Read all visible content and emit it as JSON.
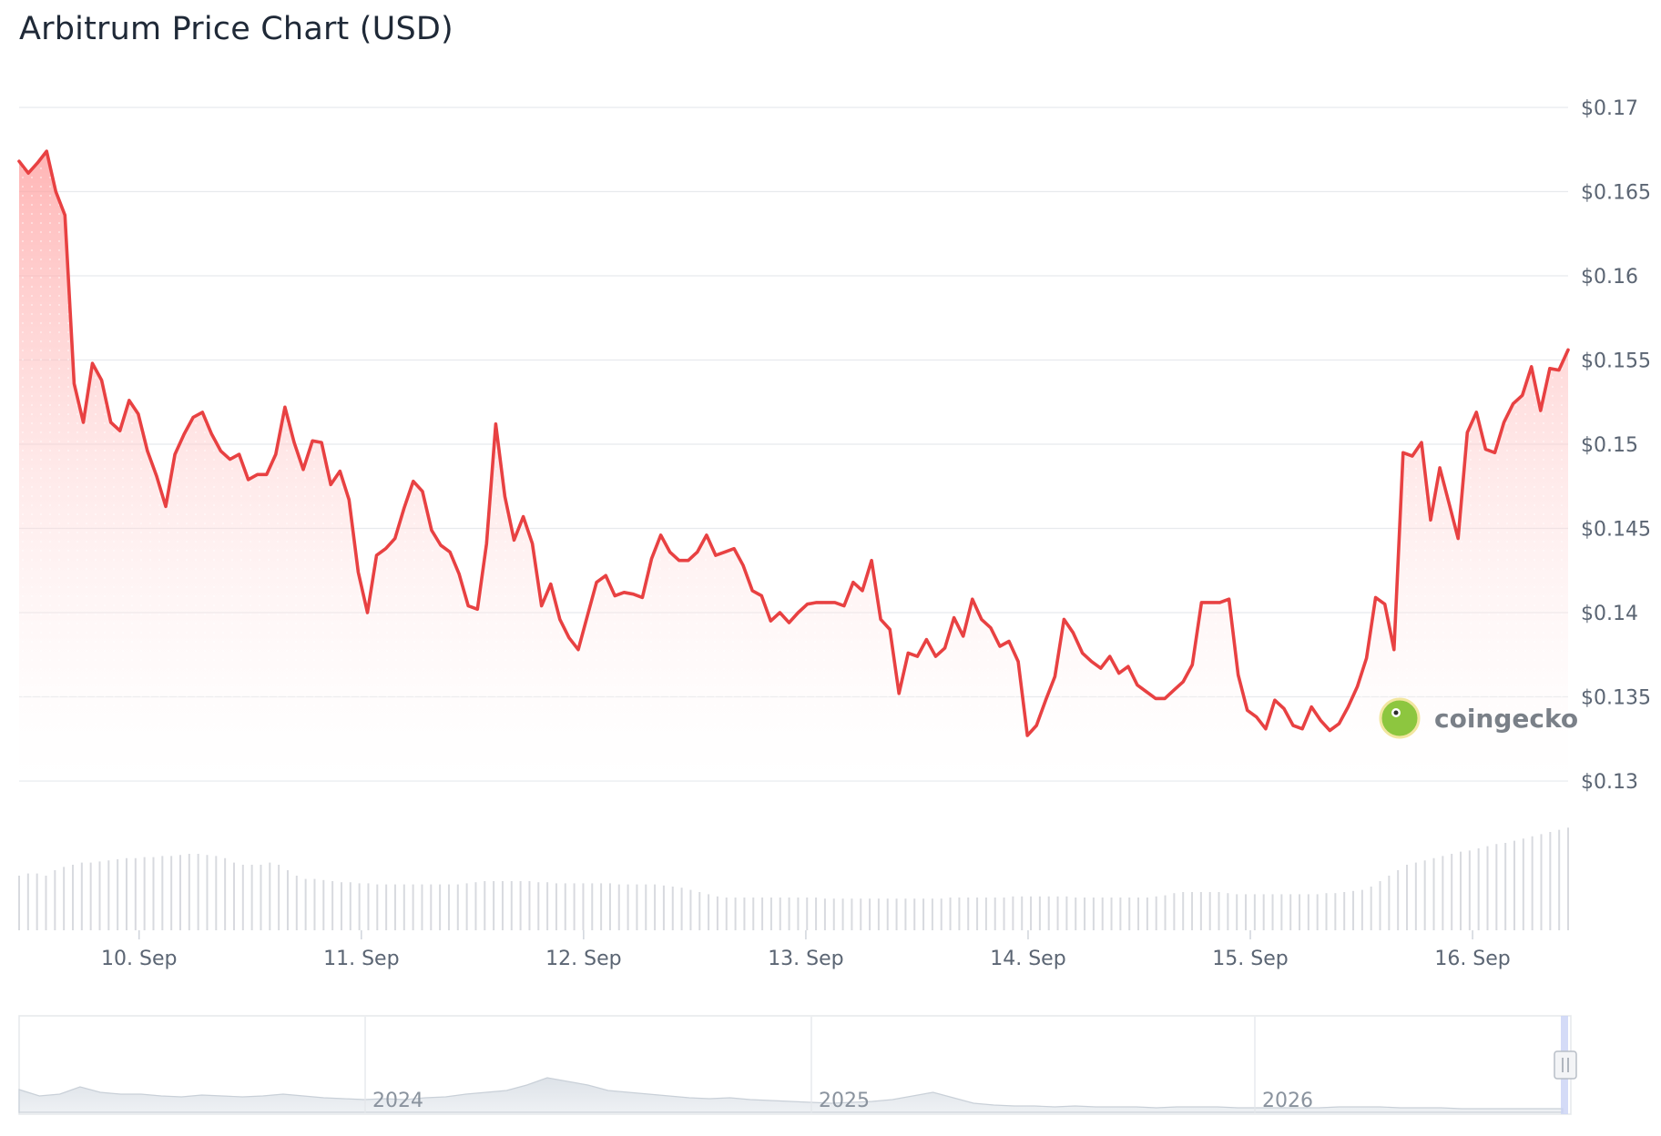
{
  "title": "Arbitrum Price Chart (USD)",
  "watermark": "coingecko",
  "colors": {
    "line": "#e84142",
    "area_top": "#ffb3b3",
    "grid": "#e8eaed",
    "volume": "#d8dadf",
    "navigator": "#dfe3e8"
  },
  "chart_data": {
    "type": "area",
    "title": "Arbitrum Price Chart (USD)",
    "xlabel": "",
    "ylabel": "",
    "ylim": [
      0.13,
      0.17
    ],
    "yticks": [
      0.13,
      0.135,
      0.14,
      0.145,
      0.15,
      0.155,
      0.16,
      0.165,
      0.17
    ],
    "ytick_labels": [
      "$0.13",
      "$0.135",
      "$0.14",
      "$0.145",
      "$0.15",
      "$0.155",
      "$0.16",
      "$0.165",
      "$0.17"
    ],
    "xlim_days": [
      9.46,
      16.43
    ],
    "xticks": [
      10,
      11,
      12,
      13,
      14,
      15,
      16
    ],
    "xtick_labels": [
      "10. Sep",
      "11. Sep",
      "12. Sep",
      "13. Sep",
      "14. Sep",
      "15. Sep",
      "16. Sep"
    ],
    "grid": true,
    "legend": "none",
    "series": [
      {
        "values": [
          0.1668,
          0.1661,
          0.1667,
          0.1674,
          0.165,
          0.1636,
          0.1536,
          0.1513,
          0.1548,
          0.1538,
          0.1513,
          0.1508,
          0.1526,
          0.1518,
          0.1496,
          0.1481,
          0.1463,
          0.1494,
          0.1506,
          0.1516,
          0.1519,
          0.1506,
          0.1496,
          0.1491,
          0.1494,
          0.1479,
          0.1482,
          0.1482,
          0.1494,
          0.1522,
          0.1501,
          0.1485,
          0.1502,
          0.1501,
          0.1476,
          0.1484,
          0.1467,
          0.1424,
          0.14,
          0.1434,
          0.1438,
          0.1444,
          0.1462,
          0.1478,
          0.1472,
          0.1449,
          0.144,
          0.1436,
          0.1423,
          0.1404,
          0.1402,
          0.1441,
          0.1512,
          0.1469,
          0.1443,
          0.1457,
          0.1441,
          0.1404,
          0.1417,
          0.1396,
          0.1385,
          0.1378,
          0.1398,
          0.1418,
          0.1422,
          0.141,
          0.1412,
          0.1411,
          0.1409,
          0.1432,
          0.1446,
          0.1436,
          0.1431,
          0.1431,
          0.1436,
          0.1446,
          0.1434,
          0.1436,
          0.1438,
          0.1428,
          0.1413,
          0.141,
          0.1395,
          0.14,
          0.1394,
          0.14,
          0.1405,
          0.1406,
          0.1406,
          0.1406,
          0.1404,
          0.1418,
          0.1413,
          0.1431,
          0.1396,
          0.139,
          0.1352,
          0.1376,
          0.1374,
          0.1384,
          0.1374,
          0.1379,
          0.1397,
          0.1386,
          0.1408,
          0.1396,
          0.1391,
          0.138,
          0.1383,
          0.1371,
          0.1327,
          0.1333,
          0.1348,
          0.1362,
          0.1396,
          0.1388,
          0.1376,
          0.1371,
          0.1367,
          0.1374,
          0.1364,
          0.1368,
          0.1357,
          0.1353,
          0.1349,
          0.1349,
          0.1354,
          0.1359,
          0.1369,
          0.1406,
          0.1406,
          0.1406,
          0.1408,
          0.1363,
          0.1342,
          0.1338,
          0.1331,
          0.1348,
          0.1343,
          0.1333,
          0.1331,
          0.1344,
          0.1336,
          0.133,
          0.1334,
          0.1344,
          0.1356,
          0.1373,
          0.1409,
          0.1405,
          0.1378,
          0.1495,
          0.1493,
          0.1501,
          0.1455,
          0.1486,
          0.1465,
          0.1444,
          0.1507,
          0.1519,
          0.1497,
          0.1495,
          0.1513,
          0.1524,
          0.1529,
          0.1546,
          0.152,
          0.1545,
          0.1544,
          0.1556
        ]
      }
    ],
    "volume_relative": [
      0.5,
      0.52,
      0.52,
      0.5,
      0.55,
      0.58,
      0.6,
      0.62,
      0.62,
      0.63,
      0.64,
      0.65,
      0.66,
      0.66,
      0.67,
      0.67,
      0.68,
      0.68,
      0.69,
      0.7,
      0.7,
      0.69,
      0.68,
      0.66,
      0.62,
      0.6,
      0.6,
      0.6,
      0.62,
      0.6,
      0.55,
      0.5,
      0.47,
      0.47,
      0.46,
      0.45,
      0.44,
      0.44,
      0.43,
      0.43,
      0.42,
      0.42,
      0.42,
      0.42,
      0.42,
      0.42,
      0.42,
      0.42,
      0.42,
      0.42,
      0.43,
      0.44,
      0.45,
      0.45,
      0.45,
      0.45,
      0.45,
      0.45,
      0.44,
      0.44,
      0.43,
      0.43,
      0.43,
      0.43,
      0.43,
      0.43,
      0.43,
      0.42,
      0.42,
      0.42,
      0.42,
      0.42,
      0.41,
      0.4,
      0.39,
      0.37,
      0.35,
      0.33,
      0.31,
      0.3,
      0.3,
      0.3,
      0.3,
      0.3,
      0.3,
      0.3,
      0.3,
      0.3,
      0.3,
      0.3,
      0.29,
      0.29,
      0.29,
      0.29,
      0.29,
      0.29,
      0.29,
      0.29,
      0.29,
      0.29,
      0.29,
      0.29,
      0.29,
      0.29,
      0.3,
      0.3,
      0.3,
      0.3,
      0.3,
      0.3,
      0.3,
      0.31,
      0.31,
      0.31,
      0.31,
      0.31,
      0.31,
      0.31,
      0.3,
      0.3,
      0.3,
      0.3,
      0.3,
      0.3,
      0.3,
      0.3,
      0.3,
      0.31,
      0.32,
      0.34,
      0.35,
      0.35,
      0.35,
      0.35,
      0.35,
      0.34,
      0.33,
      0.33,
      0.33,
      0.33,
      0.33,
      0.33,
      0.33,
      0.33,
      0.33,
      0.33,
      0.34,
      0.34,
      0.35,
      0.36,
      0.37,
      0.4,
      0.45,
      0.5,
      0.55,
      0.6,
      0.62,
      0.64,
      0.66,
      0.68,
      0.7,
      0.72,
      0.73,
      0.75,
      0.77,
      0.79,
      0.8,
      0.82,
      0.84,
      0.86,
      0.88,
      0.9,
      0.92,
      0.94
    ],
    "navigator": {
      "labels": [
        "2024",
        "2025",
        "2026"
      ]
    }
  }
}
